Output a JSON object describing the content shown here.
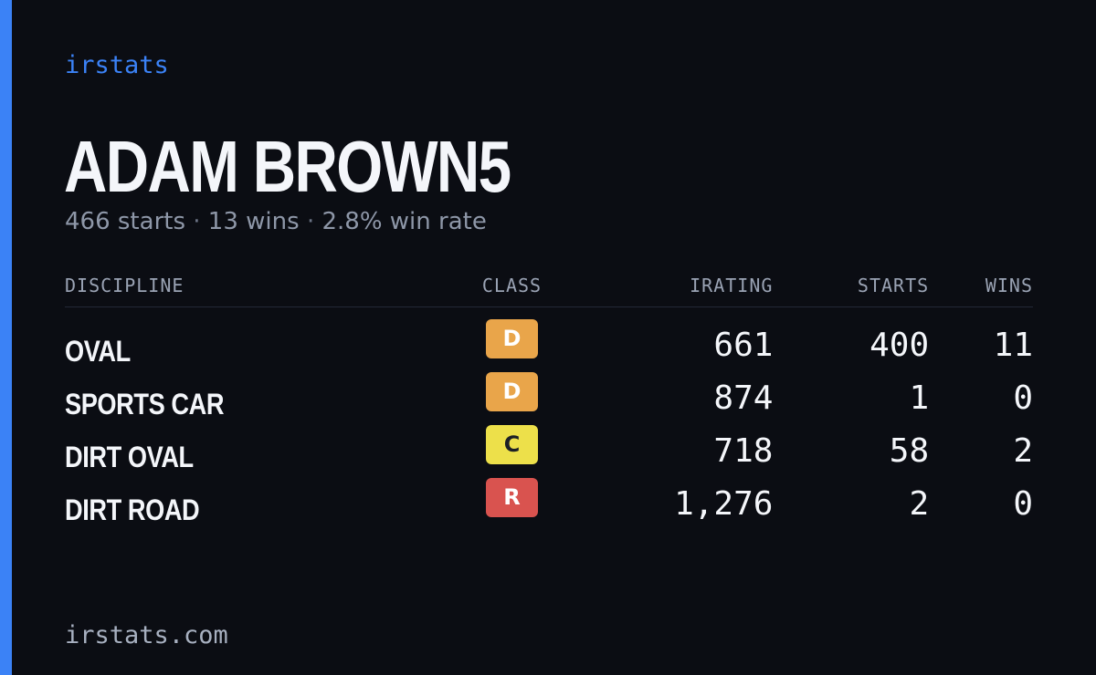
{
  "brand": "irstats",
  "driver": {
    "name": "ADAM BROWN5",
    "starts": "466 starts",
    "wins": "13 wins",
    "win_rate": "2.8% win rate",
    "separator": "·"
  },
  "table": {
    "headers": [
      "DISCIPLINE",
      "CLASS",
      "IRATING",
      "STARTS",
      "WINS"
    ],
    "rows": [
      {
        "discipline": "OVAL",
        "class": "D",
        "class_color": "#e9a54a",
        "irating": "661",
        "starts": "400",
        "wins": "11"
      },
      {
        "discipline": "SPORTS CAR",
        "class": "D",
        "class_color": "#e9a54a",
        "irating": "874",
        "starts": "1",
        "wins": "0"
      },
      {
        "discipline": "DIRT OVAL",
        "class": "C",
        "class_color": "#ede04a",
        "irating": "718",
        "starts": "58",
        "wins": "2"
      },
      {
        "discipline": "DIRT ROAD",
        "class": "R",
        "class_color": "#d9534f",
        "irating": "1,276",
        "starts": "2",
        "wins": "0"
      }
    ]
  },
  "footer": "irstats.com",
  "colors": {
    "accent": "#3b82f6",
    "background": "#0b0d13"
  }
}
